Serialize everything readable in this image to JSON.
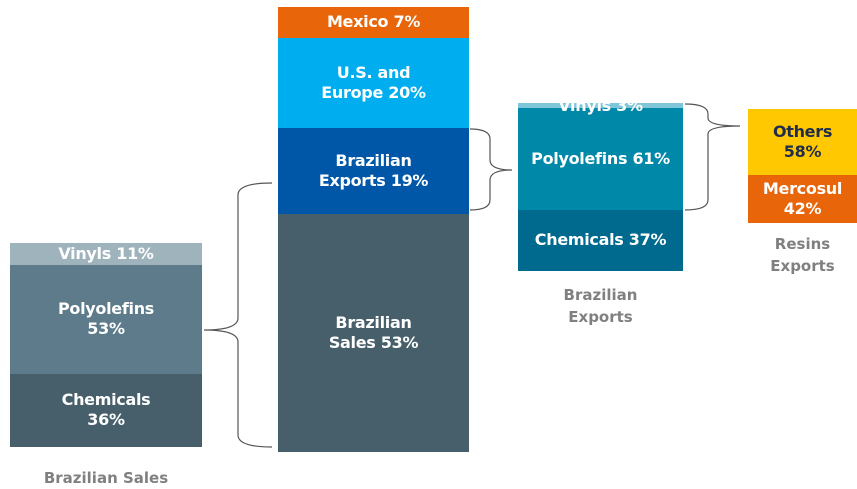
{
  "chart_data": [
    {
      "type": "stacked_bar",
      "title": "Brazilian Sales",
      "series": [
        {
          "name": "Chemicals",
          "values": [
            36
          ],
          "value_labels": [
            "36%"
          ],
          "color": "#475f6b",
          "text_color": "#ffffff"
        },
        {
          "name": "Polyolefins",
          "values": [
            53
          ],
          "value_labels": [
            "53%"
          ],
          "color": "#5d7b8a",
          "text_color": "#ffffff"
        },
        {
          "name": "Vinyls",
          "values": [
            11
          ],
          "value_labels": [
            "11%"
          ],
          "color": "#9fb3bd",
          "text_color": "#ffffff"
        }
      ]
    },
    {
      "type": "stacked_bar",
      "series": [
        {
          "name": "Brazilian Sales",
          "values": [
            53
          ],
          "value_labels": [
            "53%"
          ],
          "color": "#475f6b",
          "text_color": "#ffffff"
        },
        {
          "name": "Brazilian Exports",
          "values": [
            19
          ],
          "value_labels": [
            "19%"
          ],
          "color": "#0057a8",
          "text_color": "#ffffff"
        },
        {
          "name": "U.S. and Europe",
          "values": [
            20
          ],
          "value_labels": [
            "20%"
          ],
          "color": "#00aeef",
          "text_color": "#ffffff"
        },
        {
          "name": "Mexico",
          "values": [
            7
          ],
          "value_labels": [
            "7%"
          ],
          "color": "#e8650a",
          "text_color": "#ffffff"
        }
      ]
    },
    {
      "type": "stacked_bar",
      "title": "Brazilian Exports",
      "series": [
        {
          "name": "Chemicals",
          "values": [
            37
          ],
          "value_labels": [
            "37%"
          ],
          "color": "#006a8e",
          "text_color": "#ffffff"
        },
        {
          "name": "Polyolefins",
          "values": [
            61
          ],
          "value_labels": [
            "61%"
          ],
          "color": "#0088a8",
          "text_color": "#ffffff"
        },
        {
          "name": "Vinyls",
          "values": [
            3
          ],
          "value_labels": [
            "3%"
          ],
          "color": "#7fc6d8",
          "text_color": "#ffffff"
        }
      ]
    },
    {
      "type": "stacked_bar",
      "title": "Resins Exports",
      "series": [
        {
          "name": "Mercosul",
          "values": [
            42
          ],
          "value_labels": [
            "42%"
          ],
          "color": "#e8650a",
          "text_color": "#ffffff"
        },
        {
          "name": "Others",
          "values": [
            58
          ],
          "value_labels": [
            "58%"
          ],
          "color": "#ffc800",
          "text_color": "#1f2d4d"
        }
      ]
    }
  ]
}
